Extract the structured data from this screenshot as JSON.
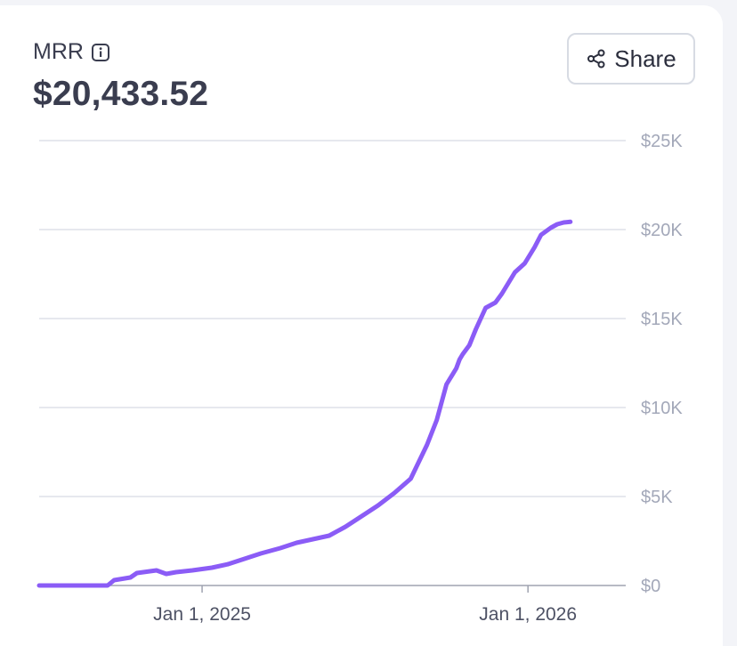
{
  "colors": {
    "line": "#8b5cf6",
    "grid": "#dde1e8",
    "axis": "#9fa3b0",
    "text_dark": "#3a3d4f",
    "text_muted": "#a3a8b9"
  },
  "header": {
    "label": "MRR",
    "value": "$20,433.52",
    "info_icon": "info-icon"
  },
  "share": {
    "label": "Share",
    "icon": "share-icon"
  },
  "chart_data": {
    "type": "line",
    "title": "MRR",
    "xlabel": "",
    "ylabel": "",
    "x_range": [
      2024.5,
      2026.3
    ],
    "ylim": [
      0,
      25000
    ],
    "grid": true,
    "y_ticks": [
      {
        "value": 0,
        "label": "$0"
      },
      {
        "value": 5000,
        "label": "$5K"
      },
      {
        "value": 10000,
        "label": "$10K"
      },
      {
        "value": 15000,
        "label": "$15K"
      },
      {
        "value": 20000,
        "label": "$20K"
      },
      {
        "value": 25000,
        "label": "$25K"
      }
    ],
    "x_ticks": [
      {
        "value": 2025.0,
        "label": "Jan 1, 2025"
      },
      {
        "value": 2026.0,
        "label": "Jan 1, 2026"
      }
    ],
    "series": [
      {
        "name": "MRR",
        "x": [
          2024.5,
          2024.71,
          2024.73,
          2024.78,
          2024.8,
          2024.86,
          2024.89,
          2024.92,
          2024.97,
          2025.03,
          2025.08,
          2025.13,
          2025.18,
          2025.24,
          2025.29,
          2025.34,
          2025.39,
          2025.44,
          2025.49,
          2025.54,
          2025.59,
          2025.64,
          2025.69,
          2025.72,
          2025.75,
          2025.78,
          2025.79,
          2025.8,
          2025.82,
          2025.84,
          2025.87,
          2025.9,
          2025.92,
          2025.94,
          2025.96,
          2025.99,
          2026.02,
          2026.04,
          2026.07,
          2026.09,
          2026.11,
          2026.13
        ],
        "y": [
          0,
          0,
          300,
          450,
          700,
          850,
          650,
          750,
          850,
          1000,
          1200,
          1500,
          1800,
          2100,
          2400,
          2600,
          2800,
          3300,
          3900,
          4500,
          5200,
          6000,
          7900,
          9300,
          11300,
          12200,
          12700,
          13000,
          13500,
          14400,
          15600,
          15900,
          16400,
          17000,
          17600,
          18100,
          19000,
          19700,
          20100,
          20300,
          20400,
          20433.52
        ]
      }
    ]
  }
}
